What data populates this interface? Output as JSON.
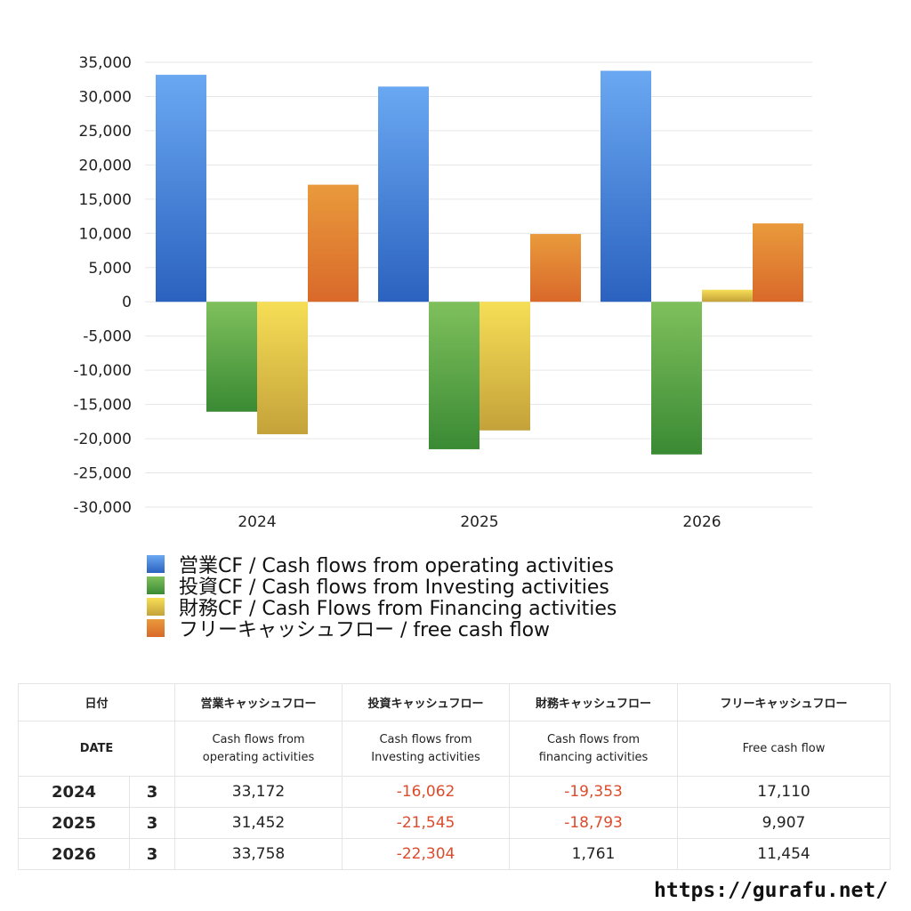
{
  "chart_data": {
    "type": "bar",
    "categories": [
      "2024",
      "2025",
      "2026"
    ],
    "series": [
      {
        "name": "営業CF / Cash flows from operating activities",
        "values": [
          33172,
          31452,
          33758
        ],
        "color": "#3a78d8"
      },
      {
        "name": "投資CF / Cash flows from Investing activities",
        "values": [
          -16062,
          -21545,
          -22304
        ],
        "color": "#4e9e3f"
      },
      {
        "name": "財務CF / Cash Flows from Financing activities",
        "values": [
          -19353,
          -18793,
          1761
        ],
        "color": "#e2c03c"
      },
      {
        "name": "フリーキャッシュフロー / free cash flow",
        "values": [
          17110,
          9907,
          11454
        ],
        "color": "#e2782c"
      }
    ],
    "ylim": [
      -30000,
      35000
    ],
    "yticks": [
      "35,000",
      "30,000",
      "25,000",
      "20,000",
      "15,000",
      "10,000",
      "5,000",
      "0",
      "-5,000",
      "-10,000",
      "-15,000",
      "-20,000",
      "-25,000",
      "-30,000"
    ],
    "ytick_values": [
      35000,
      30000,
      25000,
      20000,
      15000,
      10000,
      5000,
      0,
      -5000,
      -10000,
      -15000,
      -20000,
      -25000,
      -30000
    ],
    "grid": true,
    "legend_position": "bottom"
  },
  "table": {
    "headers_ja": [
      "日付",
      "",
      "営業キャッシュフロー",
      "投資キャッシュフロー",
      "財務キャッシュフロー",
      "フリーキャッシュフロー"
    ],
    "headers_en": [
      "DATE",
      "",
      "Cash flows from\noperating activities",
      "Cash flows from\nInvesting activities",
      "Cash flows from\nfinancing activities",
      "Free cash flow"
    ],
    "rows": [
      {
        "year": "2024",
        "month": "3",
        "operating": "33,172",
        "investing": "-16,062",
        "financing": "-19,353",
        "free": "17,110"
      },
      {
        "year": "2025",
        "month": "3",
        "operating": "31,452",
        "investing": "-21,545",
        "financing": "-18,793",
        "free": "9,907"
      },
      {
        "year": "2026",
        "month": "3",
        "operating": "33,758",
        "investing": "-22,304",
        "financing": "1,761",
        "free": "11,454"
      }
    ]
  },
  "site": "https://gurafu.net/"
}
